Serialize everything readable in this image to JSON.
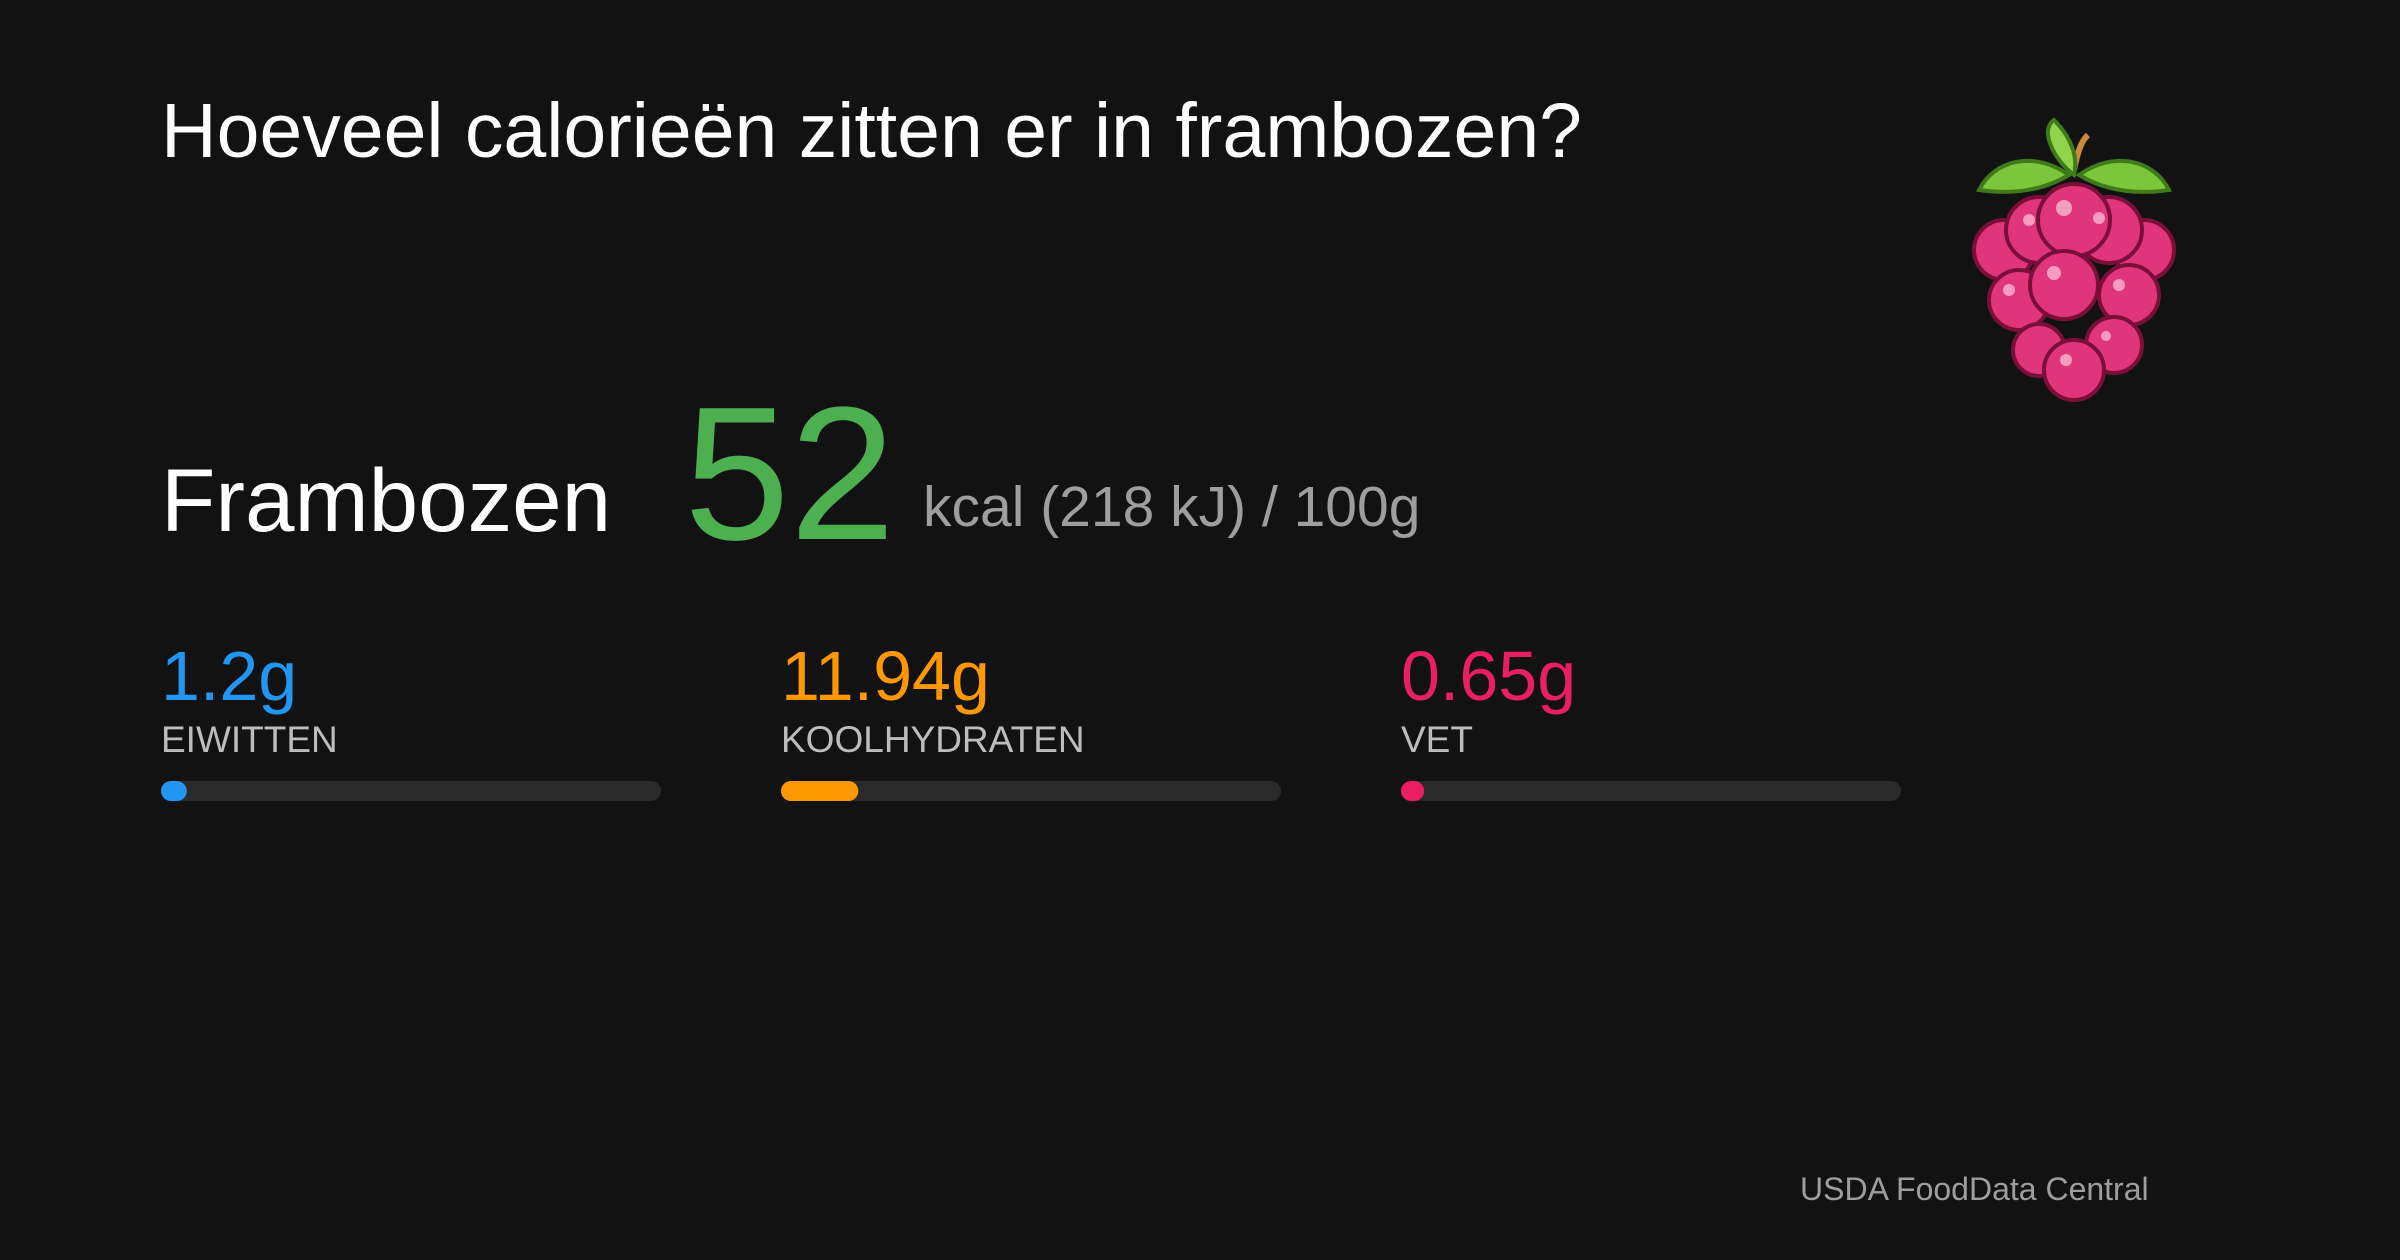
{
  "header": {
    "title": "Hoeveel calorieën zitten er in frambozen?"
  },
  "food": {
    "name": "Frambozen",
    "calories": "52",
    "unit_text": "kcal (218 kJ) / 100g"
  },
  "nutrients": [
    {
      "amount": 1.2,
      "amount_label": "1.2g",
      "name": "EIWITTEN",
      "color": "#2196f3"
    },
    {
      "amount": 11.94,
      "amount_label": "11.94g",
      "name": "KOOLHYDRATEN",
      "color": "#ff9800"
    },
    {
      "amount": 0.65,
      "amount_label": "0.65g",
      "name": "VET",
      "color": "#e91e63"
    }
  ],
  "bar_max": 100,
  "footer": {
    "source": "USDA FoodData Central"
  }
}
